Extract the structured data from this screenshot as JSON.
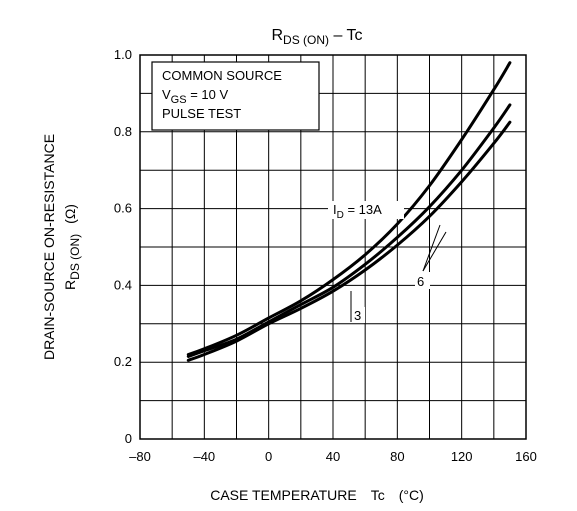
{
  "chart_data": {
    "type": "line",
    "title": {
      "main": "R",
      "sub": "DS (ON)",
      "suffix": " – Tc"
    },
    "xlabel": {
      "text": "CASE TEMPERATURE",
      "symbol": "Tc",
      "unit": "(°C)"
    },
    "ylabel": {
      "line1": "DRAIN-SOURCE ON-RESISTANCE",
      "line2_main": "R",
      "line2_sub": "DS (ON)",
      "line2_unit": "(Ω)"
    },
    "xlim": [
      -80,
      160
    ],
    "ylim": [
      0,
      1.0
    ],
    "x_ticks": [
      -80,
      -40,
      0,
      40,
      80,
      120,
      160
    ],
    "x_tick_labels": [
      "–80",
      "–40",
      "0",
      "40",
      "80",
      "120",
      "160"
    ],
    "y_ticks": [
      0,
      0.2,
      0.4,
      0.6,
      0.8,
      1.0
    ],
    "y_tick_labels": [
      "0",
      "0.2",
      "0.4",
      "0.6",
      "0.8",
      "1.0"
    ],
    "grid": true,
    "conditions": {
      "line1": "COMMON SOURCE",
      "line2_main": "V",
      "line2_sub": "GS",
      "line2_rest": " = 10 V",
      "line3": "PULSE TEST"
    },
    "series": [
      {
        "label": "13",
        "x": [
          -50,
          -40,
          -20,
          0,
          20,
          40,
          60,
          80,
          100,
          120,
          140,
          150
        ],
        "values": [
          0.22,
          0.235,
          0.27,
          0.315,
          0.36,
          0.415,
          0.48,
          0.56,
          0.66,
          0.78,
          0.91,
          0.98
        ]
      },
      {
        "label": "6",
        "x": [
          -50,
          -40,
          -20,
          0,
          20,
          40,
          60,
          80,
          100,
          120,
          140,
          150
        ],
        "values": [
          0.215,
          0.23,
          0.26,
          0.305,
          0.35,
          0.395,
          0.455,
          0.525,
          0.605,
          0.7,
          0.81,
          0.87
        ]
      },
      {
        "label": "3",
        "x": [
          -50,
          -40,
          -20,
          0,
          20,
          40,
          60,
          80,
          100,
          120,
          140,
          150
        ],
        "values": [
          0.205,
          0.22,
          0.255,
          0.3,
          0.34,
          0.385,
          0.44,
          0.505,
          0.58,
          0.67,
          0.77,
          0.825
        ]
      }
    ],
    "annotations": {
      "id13_main": "I",
      "id13_sub": "D",
      "id13_rest": " = 13A",
      "label6": "6",
      "label3": "3"
    }
  }
}
